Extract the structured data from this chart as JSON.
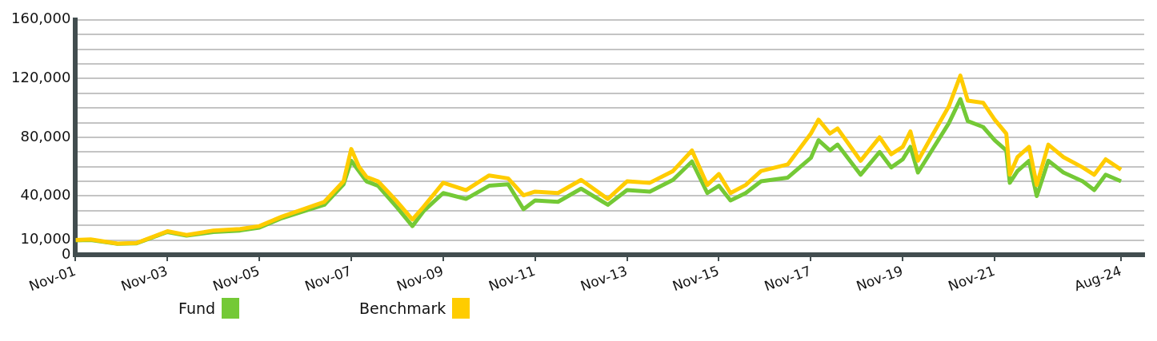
{
  "chart_data": {
    "type": "line",
    "x": [
      "2001-11",
      "2002-03",
      "2002-10",
      "2003-03",
      "2003-11",
      "2004-04",
      "2004-11",
      "2005-06",
      "2005-11",
      "2006-05",
      "2006-11",
      "2007-04",
      "2007-09",
      "2007-11",
      "2008-01",
      "2008-03",
      "2008-06",
      "2008-11",
      "2009-03",
      "2009-06",
      "2009-11",
      "2010-05",
      "2010-11",
      "2011-04",
      "2011-08",
      "2011-11",
      "2012-05",
      "2012-11",
      "2013-06",
      "2013-11",
      "2014-05",
      "2014-11",
      "2015-04",
      "2015-08",
      "2015-11",
      "2016-02",
      "2016-06",
      "2016-10",
      "2017-05",
      "2017-11",
      "2018-01",
      "2018-04",
      "2018-06",
      "2018-12",
      "2019-05",
      "2019-08",
      "2019-11",
      "2020-01",
      "2020-03",
      "2020-06",
      "2020-11",
      "2021-02",
      "2021-04",
      "2021-08",
      "2021-11",
      "2022-02",
      "2022-03",
      "2022-05",
      "2022-08",
      "2022-10",
      "2023-01",
      "2023-05",
      "2023-10",
      "2024-01",
      "2024-04",
      "2024-08"
    ],
    "series": [
      {
        "name": "Fund",
        "color": "#74c936",
        "values": [
          9800,
          10000,
          7400,
          7800,
          15500,
          13000,
          15500,
          16500,
          18500,
          25000,
          30000,
          34000,
          48000,
          64000,
          57000,
          50000,
          47000,
          32000,
          19500,
          30000,
          42000,
          38000,
          47000,
          48000,
          31000,
          37000,
          36000,
          45000,
          34000,
          44000,
          43000,
          51000,
          63500,
          42000,
          47000,
          37000,
          42000,
          50000,
          52500,
          66000,
          78000,
          71000,
          75000,
          54500,
          70000,
          59500,
          65000,
          73500,
          56000,
          68500,
          89500,
          106000,
          91000,
          87000,
          78000,
          71000,
          49000,
          57000,
          64000,
          40000,
          64000,
          56000,
          50000,
          44000,
          54500,
          50000
        ]
      },
      {
        "name": "Benchmark",
        "color": "#ffcc00",
        "values": [
          10000,
          10500,
          7600,
          8000,
          16000,
          13500,
          16500,
          17500,
          19500,
          26000,
          31500,
          36000,
          50000,
          72000,
          60000,
          53000,
          50000,
          36000,
          24000,
          33000,
          49000,
          44000,
          54000,
          52000,
          40500,
          43000,
          42000,
          51000,
          38000,
          50000,
          49000,
          57000,
          71000,
          47500,
          55000,
          42000,
          47500,
          57000,
          61500,
          82500,
          92000,
          82500,
          86000,
          64000,
          80000,
          68500,
          73500,
          84000,
          64000,
          78000,
          101000,
          122000,
          105000,
          103500,
          92000,
          82500,
          54500,
          66500,
          73500,
          47500,
          75000,
          66500,
          59500,
          54500,
          65000,
          58000
        ]
      }
    ],
    "xlim": [
      "2001-11",
      "2025-02"
    ],
    "xticks": [
      {
        "value": "2001-11",
        "label": "Nov-01"
      },
      {
        "value": "2003-11",
        "label": "Nov-03"
      },
      {
        "value": "2005-11",
        "label": "Nov-05"
      },
      {
        "value": "2007-11",
        "label": "Nov-07"
      },
      {
        "value": "2009-11",
        "label": "Nov-09"
      },
      {
        "value": "2011-11",
        "label": "Nov-11"
      },
      {
        "value": "2013-11",
        "label": "Nov-13"
      },
      {
        "value": "2015-11",
        "label": "Nov-15"
      },
      {
        "value": "2017-11",
        "label": "Nov-17"
      },
      {
        "value": "2019-11",
        "label": "Nov-19"
      },
      {
        "value": "2021-11",
        "label": "Nov-21"
      },
      {
        "value": "2024-08",
        "label": "Aug-24"
      }
    ],
    "ylim": [
      0,
      160000
    ],
    "yticks": [
      {
        "value": 0,
        "label": "0"
      },
      {
        "value": 10000,
        "label": "10,000"
      },
      {
        "value": 20000,
        "label": null
      },
      {
        "value": 30000,
        "label": null
      },
      {
        "value": 40000,
        "label": "40,000"
      },
      {
        "value": 50000,
        "label": null
      },
      {
        "value": 60000,
        "label": null
      },
      {
        "value": 70000,
        "label": null
      },
      {
        "value": 80000,
        "label": "80,000"
      },
      {
        "value": 90000,
        "label": null
      },
      {
        "value": 100000,
        "label": null
      },
      {
        "value": 110000,
        "label": null
      },
      {
        "value": 120000,
        "label": "120,000"
      },
      {
        "value": 130000,
        "label": null
      },
      {
        "value": 140000,
        "label": null
      },
      {
        "value": 150000,
        "label": null
      },
      {
        "value": 160000,
        "label": "160,000"
      }
    ],
    "grid": "y",
    "legend": "bottom",
    "marker": "none",
    "line_style": "solid"
  }
}
